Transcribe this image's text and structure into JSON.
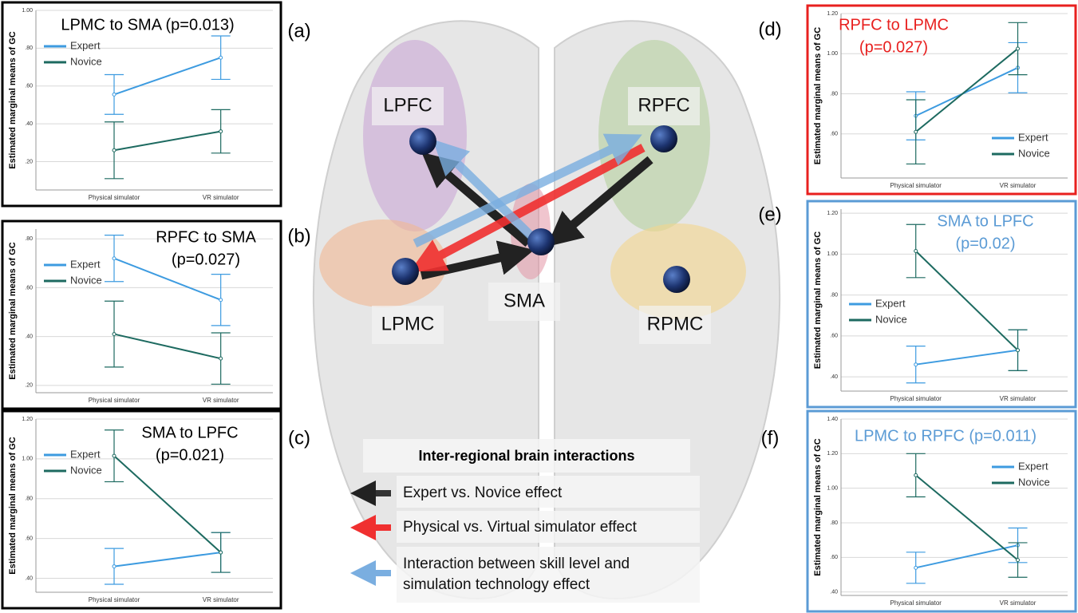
{
  "chart_data": [
    {
      "type": "line",
      "panel": "(a)",
      "title": [
        "LPMC to SMA (p=0.013)"
      ],
      "title_color": "#000000",
      "border_color": "#000000",
      "ylabel": "Estimated marginal means of GC",
      "categories": [
        "Physical simulator",
        "VR simulator"
      ],
      "ylim": [
        0.05,
        1.0
      ],
      "yticks": [
        {
          "value": 0.2,
          "label": ".20"
        },
        {
          "value": 0.4,
          "label": ".40"
        },
        {
          "value": 0.6,
          "label": ".60"
        },
        {
          "value": 0.8,
          "label": ".80"
        },
        {
          "value": 1.0,
          "label": "1.00"
        }
      ],
      "grid": true,
      "legend": "upper left",
      "series": [
        {
          "name": "Expert",
          "color": "#3d9be0",
          "values": [
            0.555,
            0.75
          ],
          "errors": [
            0.105,
            0.115
          ]
        },
        {
          "name": "Novice",
          "color": "#1d6a60",
          "values": [
            0.26,
            0.36
          ],
          "errors": [
            0.15,
            0.115
          ]
        }
      ]
    },
    {
      "type": "line",
      "panel": "(b)",
      "title": [
        "RPFC to SMA",
        "(p=0.027)"
      ],
      "title_color": "#000000",
      "border_color": "#000000",
      "ylabel": "Estimated marginal means of GC",
      "categories": [
        "Physical simulator",
        "VR simulator"
      ],
      "ylim": [
        0.17,
        0.84
      ],
      "yticks": [
        {
          "value": 0.2,
          "label": ".20"
        },
        {
          "value": 0.4,
          "label": ".40"
        },
        {
          "value": 0.6,
          "label": ".60"
        },
        {
          "value": 0.8,
          "label": ".80"
        }
      ],
      "grid": true,
      "legend": "upper left",
      "series": [
        {
          "name": "Expert",
          "color": "#3d9be0",
          "values": [
            0.72,
            0.55
          ],
          "errors": [
            0.095,
            0.105
          ]
        },
        {
          "name": "Novice",
          "color": "#1d6a60",
          "values": [
            0.41,
            0.31
          ],
          "errors": [
            0.135,
            0.105
          ]
        }
      ]
    },
    {
      "type": "line",
      "panel": "(c)",
      "title": [
        "SMA to LPFC",
        "(p=0.021)"
      ],
      "title_color": "#000000",
      "border_color": "#000000",
      "ylabel": "Estimated marginal means of GC",
      "categories": [
        "Physical simulator",
        "VR simulator"
      ],
      "ylim": [
        0.33,
        1.2
      ],
      "yticks": [
        {
          "value": 0.4,
          "label": ".40"
        },
        {
          "value": 0.6,
          "label": ".60"
        },
        {
          "value": 0.8,
          "label": ".80"
        },
        {
          "value": 1.0,
          "label": "1.00"
        },
        {
          "value": 1.2,
          "label": "1.20"
        }
      ],
      "grid": true,
      "legend": "upper left",
      "series": [
        {
          "name": "Expert",
          "color": "#3d9be0",
          "values": [
            0.46,
            0.53
          ],
          "errors": [
            0.09,
            0.1
          ]
        },
        {
          "name": "Novice",
          "color": "#1d6a60",
          "values": [
            1.015,
            0.53
          ],
          "errors": [
            0.13,
            0.1
          ]
        }
      ]
    },
    {
      "type": "line",
      "panel": "(d)",
      "title": [
        "RPFC to LPMC",
        "(p=0.027)"
      ],
      "title_color": "#e8201f",
      "border_color": "#e8201f",
      "ylabel": "Estimated marginal means of GC",
      "categories": [
        "Physical simulator",
        "VR simulator"
      ],
      "ylim": [
        0.38,
        1.2
      ],
      "yticks": [
        {
          "value": 0.6,
          "label": ".60"
        },
        {
          "value": 0.8,
          "label": ".80"
        },
        {
          "value": 1.0,
          "label": "1.00"
        },
        {
          "value": 1.2,
          "label": "1.20"
        }
      ],
      "grid": true,
      "legend": "lower right",
      "series": [
        {
          "name": "Expert",
          "color": "#3d9be0",
          "values": [
            0.69,
            0.93
          ],
          "errors": [
            0.12,
            0.125
          ]
        },
        {
          "name": "Novice",
          "color": "#1d6a60",
          "values": [
            0.61,
            1.025
          ],
          "errors": [
            0.16,
            0.13
          ]
        }
      ]
    },
    {
      "type": "line",
      "panel": "(e)",
      "title": [
        "SMA to LPFC",
        "(p=0.02)"
      ],
      "title_color": "#5b9bd5",
      "border_color": "#5b9bd5",
      "ylabel": "Estimated marginal means of GC",
      "categories": [
        "Physical simulator",
        "VR simulator"
      ],
      "ylim": [
        0.33,
        1.22
      ],
      "yticks": [
        {
          "value": 0.4,
          "label": ".40"
        },
        {
          "value": 0.6,
          "label": ".60"
        },
        {
          "value": 0.8,
          "label": ".80"
        },
        {
          "value": 1.0,
          "label": "1.00"
        },
        {
          "value": 1.2,
          "label": "1.20"
        }
      ],
      "grid": true,
      "legend": "center left",
      "series": [
        {
          "name": "Expert",
          "color": "#3d9be0",
          "values": [
            0.46,
            0.53
          ],
          "errors": [
            0.09,
            0.1
          ]
        },
        {
          "name": "Novice",
          "color": "#1d6a60",
          "values": [
            1.015,
            0.53
          ],
          "errors": [
            0.13,
            0.1
          ]
        }
      ]
    },
    {
      "type": "line",
      "panel": "(f)",
      "title": [
        "LPMC to RPFC (p=0.011)"
      ],
      "title_color": "#5b9bd5",
      "border_color": "#5b9bd5",
      "ylabel": "Estimated marginal means of GC",
      "categories": [
        "Physical simulator",
        "VR simulator"
      ],
      "ylim": [
        0.38,
        1.4
      ],
      "yticks": [
        {
          "value": 0.4,
          "label": ".40"
        },
        {
          "value": 0.6,
          "label": ".60"
        },
        {
          "value": 0.8,
          "label": ".80"
        },
        {
          "value": 1.0,
          "label": "1.00"
        },
        {
          "value": 1.2,
          "label": "1.20"
        },
        {
          "value": 1.4,
          "label": "1.40"
        }
      ],
      "grid": true,
      "legend": "upper right",
      "series": [
        {
          "name": "Expert",
          "color": "#3d9be0",
          "values": [
            0.54,
            0.67
          ],
          "errors": [
            0.09,
            0.1
          ]
        },
        {
          "name": "Novice",
          "color": "#1d6a60",
          "values": [
            1.075,
            0.585
          ],
          "errors": [
            0.125,
            0.1
          ]
        }
      ]
    }
  ],
  "diagram": {
    "nodes": [
      "LPFC",
      "RPFC",
      "LPMC",
      "SMA",
      "RPMC"
    ],
    "legend_title": "Inter-regional brain interactions",
    "legend_entries": [
      [
        "Expert vs. Novice effect"
      ],
      [
        "Physical vs. Virtual simulator effect"
      ],
      [
        "Interaction between skill level and",
        "simulation technology effect"
      ]
    ]
  }
}
